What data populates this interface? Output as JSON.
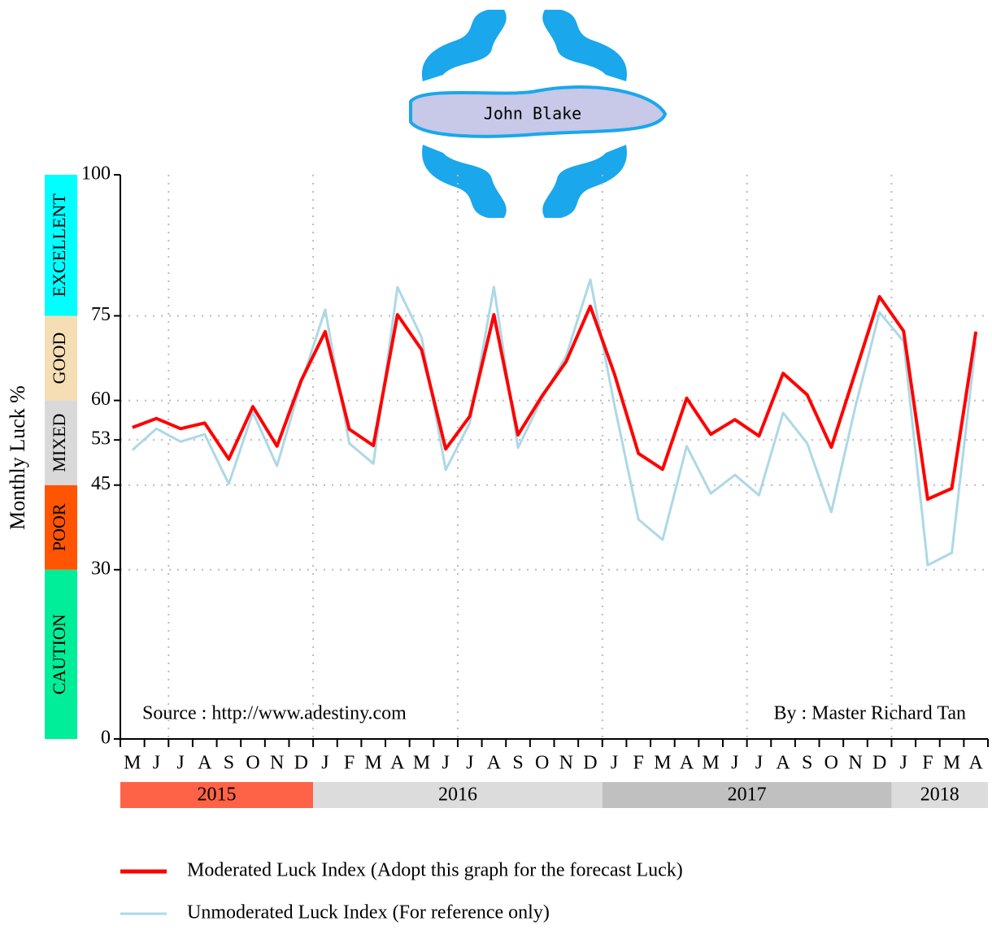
{
  "chart_data": {
    "type": "line",
    "logo_text": "John Blake",
    "ylabel": "Monthly Luck %",
    "categories": [
      "M",
      "J",
      "J",
      "A",
      "S",
      "O",
      "N",
      "D",
      "J",
      "F",
      "M",
      "A",
      "M",
      "J",
      "J",
      "A",
      "S",
      "O",
      "N",
      "D",
      "J",
      "F",
      "M",
      "A",
      "M",
      "J",
      "J",
      "A",
      "S",
      "O",
      "N",
      "D",
      "J",
      "F",
      "M",
      "A"
    ],
    "years": [
      {
        "label": "2015",
        "span": 8,
        "color": "#ff6347"
      },
      {
        "label": "2016",
        "span": 12,
        "color": "#dcdcdc"
      },
      {
        "label": "2017",
        "span": 12,
        "color": "#c0c0c0"
      },
      {
        "label": "2018",
        "span": 4,
        "color": "#dcdcdc"
      }
    ],
    "zones": [
      {
        "label": "CAUTION",
        "range": [
          0,
          30
        ],
        "color": "#00ee99"
      },
      {
        "label": "POOR",
        "range": [
          30,
          45
        ],
        "color": "#ff5500"
      },
      {
        "label": "MIXED",
        "range": [
          45,
          60
        ],
        "color": "#d9d9d9"
      },
      {
        "label": "GOOD",
        "range": [
          60,
          75
        ],
        "color": "#f5deb3"
      },
      {
        "label": "EXCELLENT",
        "range": [
          75,
          100
        ],
        "color": "#00ffff"
      }
    ],
    "ylim": [
      0,
      100
    ],
    "yticks": [
      0,
      30,
      45,
      53,
      60,
      75,
      100
    ],
    "grid": true,
    "series": [
      {
        "name": "Moderated Luck Index (Adopt this graph for the forecast Luck)",
        "color": "#ff0000",
        "values": [
          55.2,
          56.8,
          55,
          56,
          49.6,
          58.9,
          51.9,
          63.5,
          72.2,
          54.9,
          52,
          75.2,
          69,
          51.4,
          57.2,
          75.2,
          53.9,
          60.8,
          66.9,
          76.7,
          64.7,
          50.6,
          47.8,
          60.4,
          54,
          56.6,
          53.7,
          64.8,
          61,
          51.7,
          65,
          78.4,
          72.3,
          42.5,
          44.4,
          72.2
        ]
      },
      {
        "name": "Unmoderated Luck Index (For reference only)",
        "color": "#add8e6",
        "values": [
          51.2,
          55,
          52.7,
          54,
          45.2,
          57.9,
          48.4,
          63,
          76.1,
          52.4,
          48.8,
          80.1,
          71.2,
          47.7,
          56,
          80.1,
          51.6,
          60.4,
          67.9,
          81.4,
          59.2,
          38.9,
          35.3,
          51.9,
          43.5,
          46.8,
          43.2,
          57.8,
          52.4,
          40.2,
          58.9,
          75.6,
          70.5,
          30.8,
          33,
          70.3
        ]
      }
    ],
    "annotations": [
      "Source : http://www.adestiny.com",
      "By : Master Richard Tan"
    ]
  }
}
